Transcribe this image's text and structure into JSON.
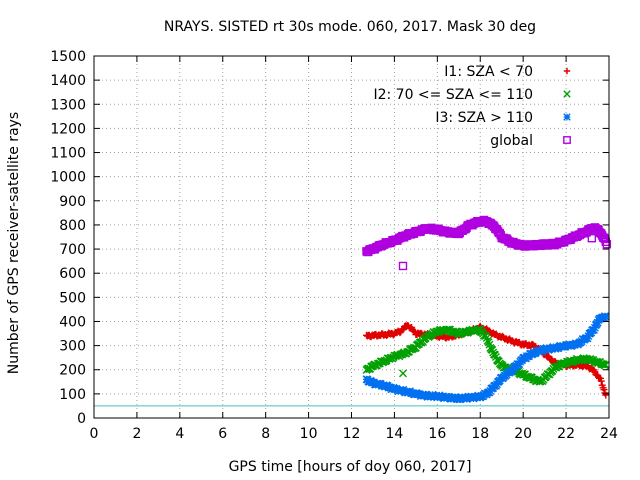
{
  "chart_data": {
    "type": "scatter",
    "title": "NRAYS. SISTED rt 30s mode. 060, 2017. Mask 30 deg",
    "xlabel": "GPS time [hours of doy 060, 2017]",
    "ylabel": "Number of GPS receiver-satellite rays",
    "xlim": [
      0,
      24
    ],
    "ylim": [
      0,
      1500
    ],
    "xticks": [
      0,
      2,
      4,
      6,
      8,
      10,
      12,
      14,
      16,
      18,
      20,
      22,
      24
    ],
    "yticks": [
      0,
      100,
      200,
      300,
      400,
      500,
      600,
      700,
      800,
      900,
      1000,
      1100,
      1200,
      1300,
      1400,
      1500
    ],
    "grid": true,
    "legend_position": "top-right",
    "baseline": {
      "y": 50,
      "color": "#40c0c0"
    },
    "series": [
      {
        "name": "I1: SZA < 70",
        "color": "#e00000",
        "marker": "plus",
        "x": [
          12.7,
          13.0,
          13.5,
          14.0,
          14.3,
          14.6,
          14.8,
          15.0,
          15.5,
          16.0,
          16.5,
          17.0,
          17.5,
          18.0,
          18.3,
          18.7,
          19.0,
          19.5,
          20.0,
          20.5,
          20.8,
          21.2,
          21.5,
          22.0,
          22.5,
          23.0,
          23.3,
          23.6,
          23.85
        ],
        "values": [
          340,
          342,
          345,
          350,
          360,
          385,
          370,
          350,
          345,
          340,
          335,
          345,
          360,
          375,
          365,
          345,
          335,
          318,
          305,
          300,
          280,
          250,
          228,
          218,
          220,
          215,
          195,
          160,
          95
        ]
      },
      {
        "name": "I2: 70 <= SZA <= 110",
        "color": "#00a000",
        "marker": "x",
        "x": [
          12.7,
          13.0,
          13.5,
          14.0,
          14.5,
          15.0,
          15.5,
          16.0,
          16.5,
          17.0,
          17.5,
          18.0,
          18.3,
          18.6,
          19.0,
          19.5,
          20.0,
          20.5,
          20.8,
          21.0,
          21.5,
          22.0,
          22.5,
          23.0,
          23.5,
          23.85
        ],
        "values": [
          200,
          215,
          235,
          255,
          268,
          295,
          335,
          360,
          365,
          350,
          360,
          365,
          330,
          270,
          215,
          200,
          180,
          160,
          150,
          165,
          210,
          230,
          240,
          245,
          230,
          220
        ],
        "outliers": {
          "x": [
            14.4
          ],
          "values": [
            185
          ]
        }
      },
      {
        "name": "I3: SZA > 110",
        "color": "#0070f0",
        "marker": "star",
        "x": [
          12.7,
          13.0,
          13.5,
          14.0,
          14.5,
          15.0,
          15.5,
          16.0,
          16.5,
          17.0,
          17.5,
          18.0,
          18.3,
          18.6,
          19.0,
          19.5,
          20.0,
          20.5,
          21.0,
          21.5,
          22.0,
          22.5,
          23.0,
          23.3,
          23.6,
          23.85
        ],
        "values": [
          160,
          145,
          135,
          120,
          110,
          100,
          92,
          90,
          85,
          80,
          85,
          88,
          100,
          125,
          165,
          200,
          245,
          270,
          285,
          290,
          300,
          305,
          335,
          370,
          415,
          420
        ]
      },
      {
        "name": "global",
        "color": "#b000e0",
        "marker": "square",
        "x": [
          12.7,
          13.0,
          13.5,
          14.0,
          14.5,
          15.0,
          15.5,
          16.0,
          16.5,
          17.0,
          17.5,
          18.0,
          18.3,
          18.7,
          19.0,
          19.5,
          20.0,
          20.5,
          21.0,
          21.5,
          22.0,
          22.5,
          23.0,
          23.3,
          23.6,
          23.85
        ],
        "values": [
          690,
          700,
          720,
          735,
          755,
          770,
          785,
          780,
          770,
          765,
          800,
          815,
          815,
          790,
          750,
          725,
          715,
          715,
          720,
          720,
          735,
          755,
          775,
          790,
          770,
          730
        ],
        "outliers": {
          "x": [
            14.4,
            23.2,
            23.9
          ],
          "values": [
            630,
            745,
            720
          ]
        }
      }
    ]
  }
}
